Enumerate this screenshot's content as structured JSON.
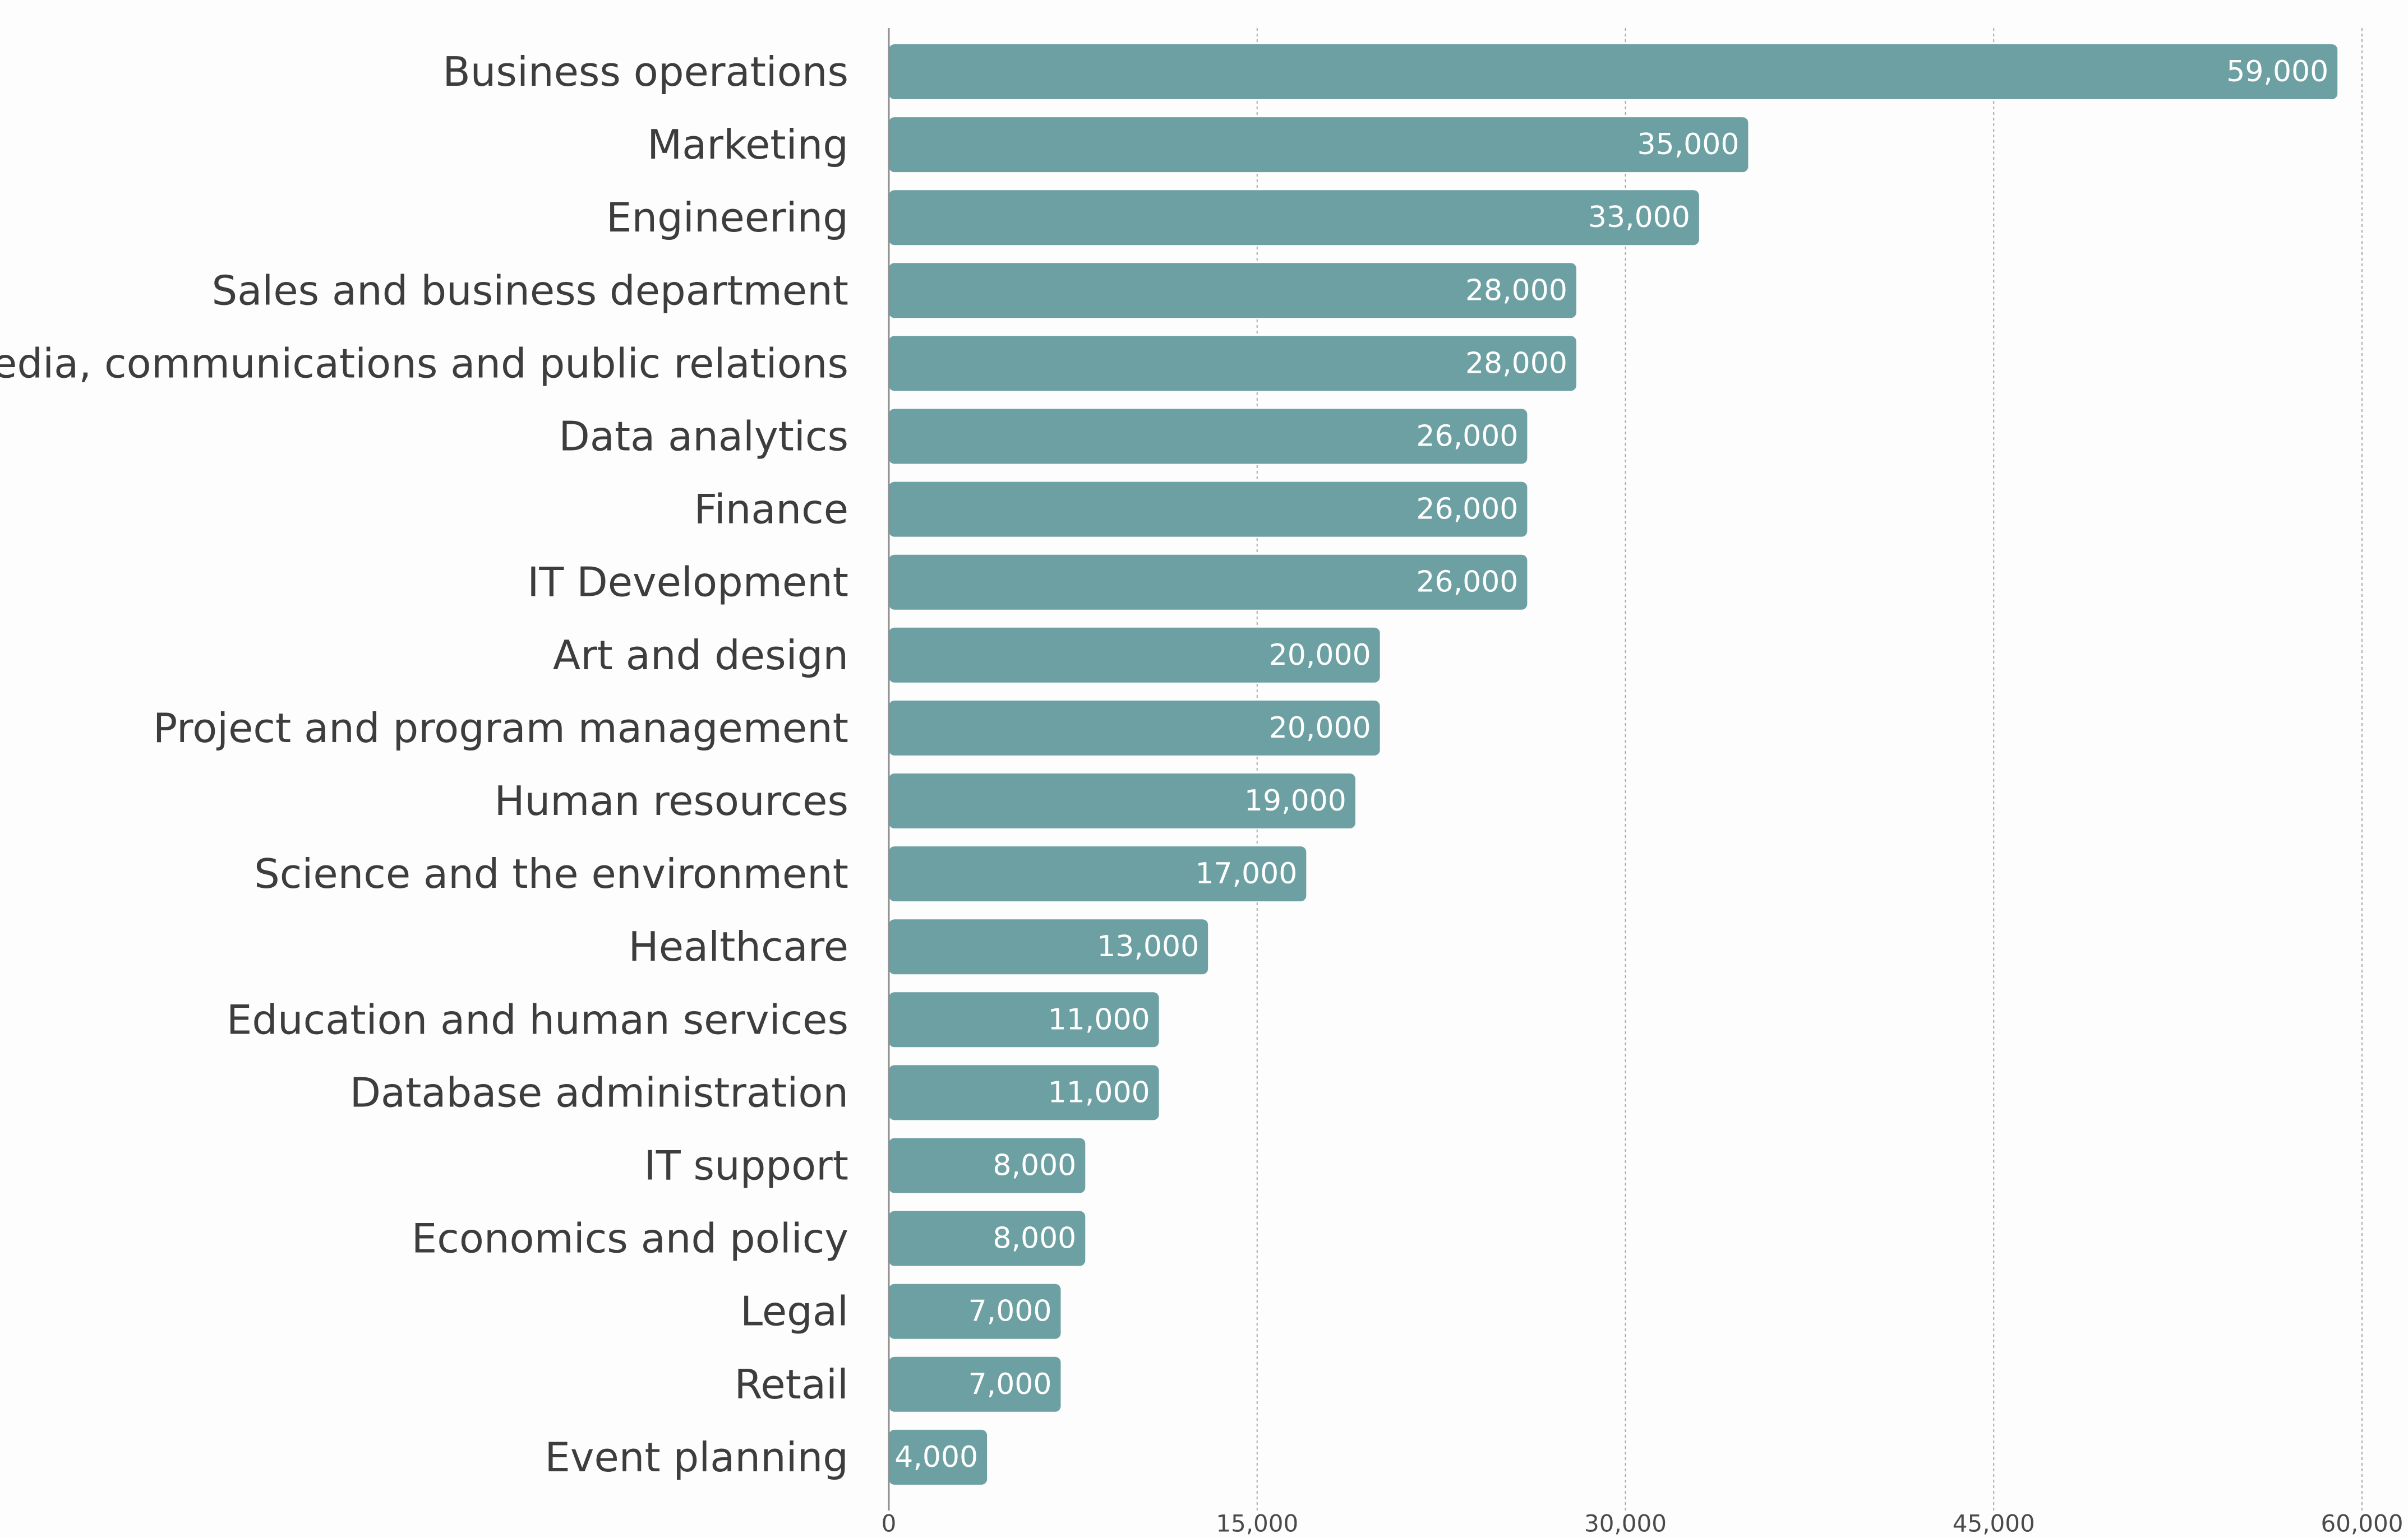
{
  "chart_data": {
    "type": "bar",
    "orientation": "horizontal",
    "title": "",
    "xlabel": "",
    "ylabel": "",
    "xlim": [
      0,
      60000
    ],
    "grid": true,
    "bar_color": "#6ca0a3",
    "categories": [
      "Business operations",
      "Marketing",
      "Engineering",
      "Sales and business department",
      "Media, communications and public relations",
      "Data analytics",
      "Finance",
      "IT Development",
      "Art and design",
      "Project and program management",
      "Human resources",
      "Science and the environment",
      "Healthcare",
      "Education and human services",
      "Database administration",
      "IT support",
      "Economics and policy",
      "Legal",
      "Retail",
      "Event planning"
    ],
    "values": [
      59000,
      35000,
      33000,
      28000,
      28000,
      26000,
      26000,
      26000,
      20000,
      20000,
      19000,
      17000,
      13000,
      11000,
      11000,
      8000,
      8000,
      7000,
      7000,
      4000
    ],
    "value_labels": [
      "59,000",
      "35,000",
      "33,000",
      "28,000",
      "28,000",
      "26,000",
      "26,000",
      "26,000",
      "20,000",
      "20,000",
      "19,000",
      "17,000",
      "13,000",
      "11,000",
      "11,000",
      "8,000",
      "8,000",
      "7,000",
      "7,000",
      "4,000"
    ],
    "ticks": [
      0,
      15000,
      30000,
      45000,
      60000
    ],
    "tick_labels": [
      "0",
      "15,000",
      "30,000",
      "45,000",
      "60,000"
    ]
  }
}
